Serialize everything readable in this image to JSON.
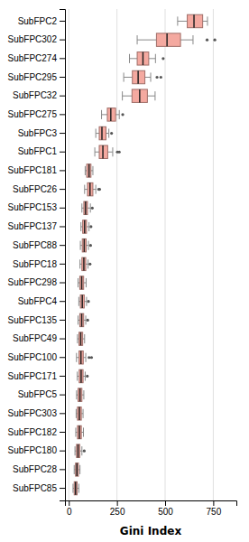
{
  "chart_data": {
    "type": "box",
    "orientation": "horizontal",
    "categories": [
      "SubFPC2",
      "SubFPC302",
      "SubFPC274",
      "SubFPC295",
      "SubFPC32",
      "SubFPC275",
      "SubFPC3",
      "SubFPC1",
      "SubFPC181",
      "SubFPC26",
      "SubFPC153",
      "SubFPC137",
      "SubFPC88",
      "SubFPC18",
      "SubFPC298",
      "SubFPC4",
      "SubFPC135",
      "SubFPC49",
      "SubFPC100",
      "SubFPC171",
      "SubFPC5",
      "SubFPC303",
      "SubFPC182",
      "SubFPC180",
      "SubFPC28",
      "SubFPC85"
    ],
    "boxes": [
      {
        "whislo": 565,
        "q1": 615,
        "med": 650,
        "q3": 695,
        "whishi": 720,
        "fliers": []
      },
      {
        "whislo": 355,
        "q1": 455,
        "med": 510,
        "q3": 580,
        "whishi": 645,
        "fliers": [
          718,
          758
        ]
      },
      {
        "whislo": 315,
        "q1": 355,
        "med": 385,
        "q3": 415,
        "whishi": 450,
        "fliers": [
          490
        ]
      },
      {
        "whislo": 285,
        "q1": 330,
        "med": 360,
        "q3": 395,
        "whishi": 425,
        "fliers": [
          458,
          478
        ]
      },
      {
        "whislo": 278,
        "q1": 328,
        "med": 368,
        "q3": 408,
        "whishi": 448,
        "fliers": []
      },
      {
        "whislo": 170,
        "q1": 200,
        "med": 218,
        "q3": 243,
        "whishi": 262,
        "fliers": [
          280
        ]
      },
      {
        "whislo": 140,
        "q1": 158,
        "med": 172,
        "q3": 193,
        "whishi": 208,
        "fliers": [
          222
        ]
      },
      {
        "whislo": 135,
        "q1": 158,
        "med": 177,
        "q3": 202,
        "whishi": 228,
        "fliers": [
          252,
          262
        ]
      },
      {
        "whislo": 85,
        "q1": 93,
        "med": 105,
        "q3": 115,
        "whishi": 125,
        "fliers": []
      },
      {
        "whislo": 82,
        "q1": 97,
        "med": 110,
        "q3": 125,
        "whishi": 140,
        "fliers": [
          155,
          160
        ]
      },
      {
        "whislo": 68,
        "q1": 78,
        "med": 87,
        "q3": 97,
        "whishi": 112,
        "fliers": [
          122
        ]
      },
      {
        "whislo": 63,
        "q1": 72,
        "med": 82,
        "q3": 92,
        "whishi": 105,
        "fliers": [
          115
        ]
      },
      {
        "whislo": 60,
        "q1": 70,
        "med": 80,
        "q3": 90,
        "whishi": 102,
        "fliers": [
          113
        ]
      },
      {
        "whislo": 58,
        "q1": 68,
        "med": 78,
        "q3": 88,
        "whishi": 100,
        "fliers": [
          110
        ]
      },
      {
        "whislo": 48,
        "q1": 57,
        "med": 67,
        "q3": 77,
        "whishi": 90,
        "fliers": []
      },
      {
        "whislo": 52,
        "q1": 60,
        "med": 70,
        "q3": 80,
        "whishi": 92,
        "fliers": [
          102
        ]
      },
      {
        "whislo": 48,
        "q1": 57,
        "med": 67,
        "q3": 77,
        "whishi": 88,
        "fliers": [
          98
        ]
      },
      {
        "whislo": 45,
        "q1": 53,
        "med": 62,
        "q3": 72,
        "whishi": 82,
        "fliers": []
      },
      {
        "whislo": 40,
        "q1": 53,
        "med": 63,
        "q3": 75,
        "whishi": 88,
        "fliers": [
          105,
          118
        ]
      },
      {
        "whislo": 44,
        "q1": 54,
        "med": 64,
        "q3": 74,
        "whishi": 85,
        "fliers": [
          96
        ]
      },
      {
        "whislo": 40,
        "q1": 48,
        "med": 58,
        "q3": 68,
        "whishi": 78,
        "fliers": []
      },
      {
        "whislo": 38,
        "q1": 45,
        "med": 55,
        "q3": 65,
        "whishi": 74,
        "fliers": []
      },
      {
        "whislo": 36,
        "q1": 45,
        "med": 55,
        "q3": 65,
        "whishi": 76,
        "fliers": []
      },
      {
        "whislo": 32,
        "q1": 40,
        "med": 48,
        "q3": 57,
        "whishi": 68,
        "fliers": [
          80
        ]
      },
      {
        "whislo": 28,
        "q1": 35,
        "med": 42,
        "q3": 50,
        "whishi": 58,
        "fliers": []
      },
      {
        "whislo": 22,
        "q1": 28,
        "med": 35,
        "q3": 43,
        "whishi": 52,
        "fliers": []
      }
    ],
    "color": "#F4A9A0",
    "xlabel": "Gini Index",
    "xlim": [
      -20,
      870
    ],
    "xticks": [
      0,
      250,
      500,
      750
    ],
    "grid": true
  }
}
